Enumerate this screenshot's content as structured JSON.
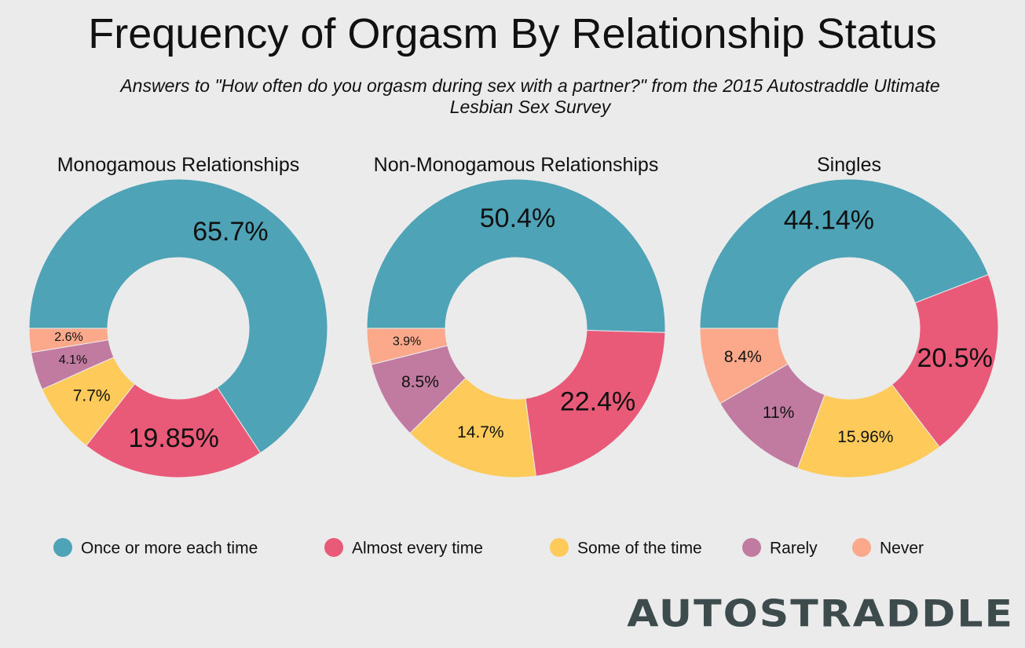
{
  "chart_data": {
    "type": "pie",
    "title": "Frequency of Orgasm By Relationship Status",
    "subtitle": "Answers to \"How often do you orgasm during sex with a partner?\" from the 2015 Autostraddle Ultimate Lesbian Sex Survey",
    "categories": [
      "Once or more each time",
      "Almost every time",
      "Some of the time",
      "Rarely",
      "Never"
    ],
    "colors": [
      "#4fa3b7",
      "#e95a78",
      "#fecb5b",
      "#c27ba0",
      "#fca98b"
    ],
    "legend_position": "bottom",
    "charts": [
      {
        "title": "Monogamous Relationships",
        "values": [
          65.7,
          19.85,
          7.7,
          4.1,
          2.6
        ],
        "labels": [
          "65.7%",
          "19.85%",
          "7.7%",
          "4.1%",
          "2.6%"
        ]
      },
      {
        "title": "Non-Monogamous Relationships",
        "values": [
          50.4,
          22.4,
          14.7,
          8.5,
          3.9
        ],
        "labels": [
          "50.4%",
          "22.4%",
          "14.7%",
          "8.5%",
          "3.9%"
        ]
      },
      {
        "title": "Singles",
        "values": [
          44.14,
          20.5,
          15.96,
          11,
          8.4
        ],
        "labels": [
          "44.14%",
          "20.5%",
          "15.96%",
          "11%",
          "8.4%"
        ]
      }
    ]
  },
  "logo": "AUTOSTRADDLE"
}
